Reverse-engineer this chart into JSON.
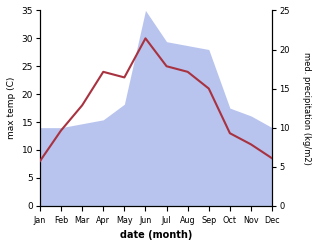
{
  "months": [
    "Jan",
    "Feb",
    "Mar",
    "Apr",
    "May",
    "Jun",
    "Jul",
    "Aug",
    "Sep",
    "Oct",
    "Nov",
    "Dec"
  ],
  "temperature": [
    8.0,
    13.5,
    18.0,
    24.0,
    23.0,
    30.0,
    25.0,
    24.0,
    21.0,
    13.0,
    11.0,
    8.5
  ],
  "precipitation": [
    10.0,
    10.0,
    10.5,
    11.0,
    13.0,
    25.0,
    21.0,
    20.5,
    20.0,
    12.5,
    11.5,
    10.0
  ],
  "temp_color": "#a83240",
  "precip_color": "#b8c4ee",
  "ylim_left": [
    0,
    35
  ],
  "ylim_right": [
    0,
    25
  ],
  "yticks_left": [
    0,
    5,
    10,
    15,
    20,
    25,
    30,
    35
  ],
  "yticks_right": [
    0,
    5,
    10,
    15,
    20,
    25
  ],
  "xlabel": "date (month)",
  "ylabel_left": "max temp (C)",
  "ylabel_right": "med. precipitation (kg/m2)",
  "bg_color": "#ffffff",
  "fig_width": 3.18,
  "fig_height": 2.47,
  "dpi": 100
}
